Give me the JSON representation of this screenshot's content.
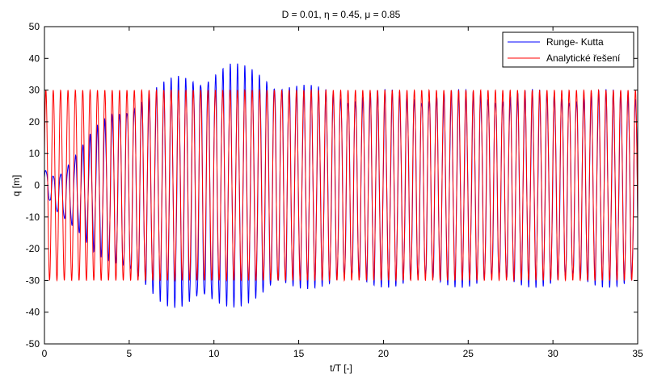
{
  "chart_data": {
    "type": "line",
    "title": "D = 0.01, η = 0.45, μ = 0.85",
    "xlabel": "t/T [-]",
    "ylabel": "q [m]",
    "xlim": [
      0,
      35
    ],
    "ylim": [
      -50,
      50
    ],
    "xticks": [
      0,
      5,
      10,
      15,
      20,
      25,
      30,
      35
    ],
    "yticks": [
      -50,
      -40,
      -30,
      -20,
      -10,
      0,
      10,
      20,
      30,
      40,
      50
    ],
    "xtick_labels": [
      "0",
      "5",
      "10",
      "15",
      "20",
      "25",
      "30",
      "35"
    ],
    "ytick_labels": [
      "-50",
      "-40",
      "-30",
      "-20",
      "-10",
      "0",
      "10",
      "20",
      "30",
      "40",
      "50"
    ],
    "grid": false,
    "legend_position": "top-right",
    "series": [
      {
        "name": "Runge- Kutta",
        "color": "#0000ff",
        "periods_per_unit_x": 2.3,
        "envelope": {
          "x": [
            0,
            0.6,
            1.0,
            2.0,
            3.0,
            4.0,
            5.0,
            6.0,
            7.0,
            8.0,
            9.0,
            10.0,
            11.0,
            12.0,
            13.0,
            14.0,
            15.0,
            16.0,
            18.0,
            20.0,
            25.0,
            30.0,
            35.0
          ],
          "max": [
            5,
            3,
            4,
            10,
            17,
            22,
            25,
            27,
            30,
            33,
            34,
            35,
            36,
            35,
            34,
            32,
            30,
            29,
            28,
            28,
            28,
            28,
            28
          ],
          "min": [
            -2,
            -8,
            -10,
            -14,
            -20,
            -24,
            -28,
            -31,
            -35,
            -37,
            -37,
            -37,
            -36,
            -35,
            -34,
            -32,
            -31,
            -30,
            -30,
            -30,
            -30,
            -30,
            -30
          ]
        }
      },
      {
        "name": "Analytické řešení",
        "color": "#ff0000",
        "periods_per_unit_x": 2.3,
        "amplitude": 30
      }
    ]
  }
}
